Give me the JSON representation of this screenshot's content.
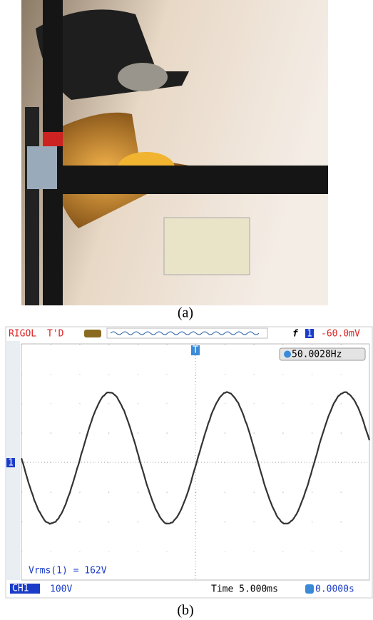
{
  "figure": {
    "panels": [
      {
        "label": "(a)"
      },
      {
        "label": "(b)"
      }
    ]
  },
  "scope": {
    "brand": "RIGOL",
    "mode": "T'D",
    "trigger_edge": "f",
    "trigger_source": "1",
    "trigger_level": "-60.0mV",
    "trigger_marker": "T",
    "frequency": "50.0028Hz",
    "channel_marker": "1",
    "measurement": "Vrms(1) = 162V",
    "channel": "CH1",
    "channel_scale": "100V",
    "timebase": "Time 5.000ms",
    "trigger_offset": "0.0000s"
  }
}
